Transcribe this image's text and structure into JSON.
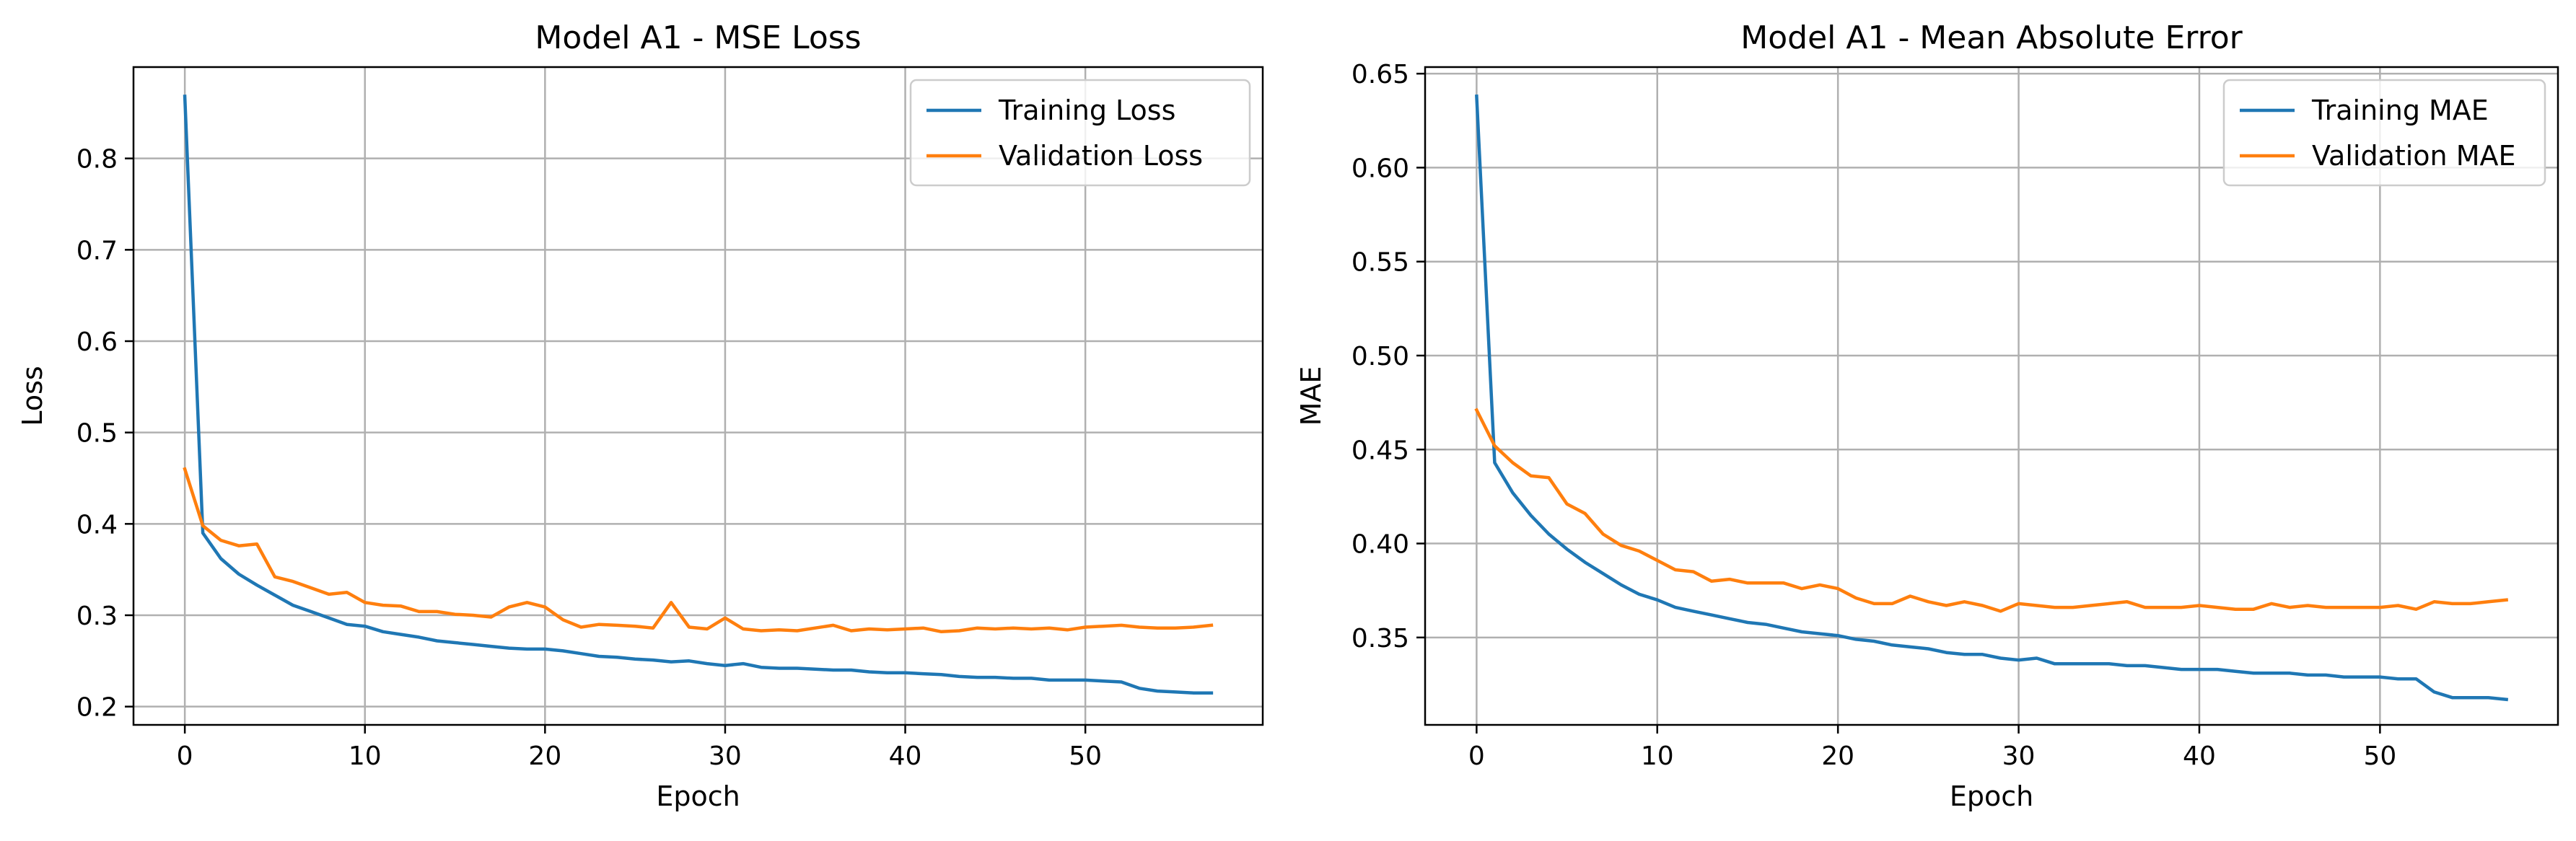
{
  "chart_data": [
    {
      "type": "line",
      "title": "Model A1 - MSE Loss",
      "xlabel": "Epoch",
      "ylabel": "Loss",
      "xlim": [
        -2.85,
        59.85
      ],
      "ylim": [
        0.18,
        0.9
      ],
      "xticks": [
        0,
        10,
        20,
        30,
        40,
        50
      ],
      "yticks": [
        0.2,
        0.3,
        0.4,
        0.5,
        0.6,
        0.7,
        0.8
      ],
      "tick_decimals": 1,
      "grid": true,
      "legend_position": "upper right",
      "series": [
        {
          "name": "Training Loss",
          "color": "#1f77b4",
          "x": [
            0,
            1,
            2,
            3,
            4,
            5,
            6,
            7,
            8,
            9,
            10,
            11,
            12,
            13,
            14,
            15,
            16,
            17,
            18,
            19,
            20,
            21,
            22,
            23,
            24,
            25,
            26,
            27,
            28,
            29,
            30,
            31,
            32,
            33,
            34,
            35,
            36,
            37,
            38,
            39,
            40,
            41,
            42,
            43,
            44,
            45,
            46,
            47,
            48,
            49,
            50,
            51,
            52,
            53,
            54,
            55,
            56,
            57
          ],
          "values": [
            0.868,
            0.39,
            0.362,
            0.345,
            0.333,
            0.322,
            0.311,
            0.304,
            0.297,
            0.29,
            0.288,
            0.282,
            0.279,
            0.276,
            0.272,
            0.27,
            0.268,
            0.266,
            0.264,
            0.263,
            0.263,
            0.261,
            0.258,
            0.255,
            0.254,
            0.252,
            0.251,
            0.249,
            0.25,
            0.247,
            0.245,
            0.247,
            0.243,
            0.242,
            0.242,
            0.241,
            0.24,
            0.24,
            0.238,
            0.237,
            0.237,
            0.236,
            0.235,
            0.233,
            0.232,
            0.232,
            0.231,
            0.231,
            0.229,
            0.229,
            0.229,
            0.228,
            0.227,
            0.22,
            0.217,
            0.216,
            0.215,
            0.215
          ]
        },
        {
          "name": "Validation Loss",
          "color": "#ff7f0e",
          "x": [
            0,
            1,
            2,
            3,
            4,
            5,
            6,
            7,
            8,
            9,
            10,
            11,
            12,
            13,
            14,
            15,
            16,
            17,
            18,
            19,
            20,
            21,
            22,
            23,
            24,
            25,
            26,
            27,
            28,
            29,
            30,
            31,
            32,
            33,
            34,
            35,
            36,
            37,
            38,
            39,
            40,
            41,
            42,
            43,
            44,
            45,
            46,
            47,
            48,
            49,
            50,
            51,
            52,
            53,
            54,
            55,
            56,
            57
          ],
          "values": [
            0.46,
            0.398,
            0.382,
            0.376,
            0.378,
            0.342,
            0.337,
            0.33,
            0.323,
            0.325,
            0.314,
            0.311,
            0.31,
            0.304,
            0.304,
            0.301,
            0.3,
            0.298,
            0.309,
            0.314,
            0.309,
            0.295,
            0.287,
            0.29,
            0.289,
            0.288,
            0.286,
            0.314,
            0.287,
            0.285,
            0.297,
            0.285,
            0.283,
            0.284,
            0.283,
            0.286,
            0.289,
            0.283,
            0.285,
            0.284,
            0.285,
            0.286,
            0.282,
            0.283,
            0.286,
            0.285,
            0.286,
            0.285,
            0.286,
            0.284,
            0.287,
            0.288,
            0.289,
            0.287,
            0.286,
            0.286,
            0.287,
            0.289
          ]
        }
      ]
    },
    {
      "type": "line",
      "title": "Model A1 - Mean Absolute Error",
      "xlabel": "Epoch",
      "ylabel": "MAE",
      "xlim": [
        -2.85,
        59.85
      ],
      "ylim": [
        0.3035,
        0.6535
      ],
      "xticks": [
        0,
        10,
        20,
        30,
        40,
        50
      ],
      "yticks": [
        0.35,
        0.4,
        0.45,
        0.5,
        0.55,
        0.6,
        0.65
      ],
      "tick_decimals": 2,
      "grid": true,
      "legend_position": "upper right",
      "series": [
        {
          "name": "Training MAE",
          "color": "#1f77b4",
          "x": [
            0,
            1,
            2,
            3,
            4,
            5,
            6,
            7,
            8,
            9,
            10,
            11,
            12,
            13,
            14,
            15,
            16,
            17,
            18,
            19,
            20,
            21,
            22,
            23,
            24,
            25,
            26,
            27,
            28,
            29,
            30,
            31,
            32,
            33,
            34,
            35,
            36,
            37,
            38,
            39,
            40,
            41,
            42,
            43,
            44,
            45,
            46,
            47,
            48,
            49,
            50,
            51,
            52,
            53,
            54,
            55,
            56,
            57
          ],
          "values": [
            0.638,
            0.443,
            0.427,
            0.415,
            0.405,
            0.397,
            0.39,
            0.384,
            0.378,
            0.373,
            0.37,
            0.366,
            0.364,
            0.362,
            0.36,
            0.358,
            0.357,
            0.355,
            0.353,
            0.352,
            0.351,
            0.349,
            0.348,
            0.346,
            0.345,
            0.344,
            0.342,
            0.341,
            0.341,
            0.339,
            0.338,
            0.339,
            0.336,
            0.336,
            0.336,
            0.336,
            0.335,
            0.335,
            0.334,
            0.333,
            0.333,
            0.333,
            0.332,
            0.331,
            0.331,
            0.331,
            0.33,
            0.33,
            0.329,
            0.329,
            0.329,
            0.328,
            0.328,
            0.321,
            0.318,
            0.318,
            0.318,
            0.317
          ]
        },
        {
          "name": "Validation MAE",
          "color": "#ff7f0e",
          "x": [
            0,
            1,
            2,
            3,
            4,
            5,
            6,
            7,
            8,
            9,
            10,
            11,
            12,
            13,
            14,
            15,
            16,
            17,
            18,
            19,
            20,
            21,
            22,
            23,
            24,
            25,
            26,
            27,
            28,
            29,
            30,
            31,
            32,
            33,
            34,
            35,
            36,
            37,
            38,
            39,
            40,
            41,
            42,
            43,
            44,
            45,
            46,
            47,
            48,
            49,
            50,
            51,
            52,
            53,
            54,
            55,
            56,
            57
          ],
          "values": [
            0.471,
            0.452,
            0.443,
            0.436,
            0.435,
            0.421,
            0.416,
            0.405,
            0.399,
            0.396,
            0.391,
            0.386,
            0.385,
            0.38,
            0.381,
            0.379,
            0.379,
            0.379,
            0.376,
            0.378,
            0.376,
            0.371,
            0.368,
            0.368,
            0.372,
            0.369,
            0.367,
            0.369,
            0.367,
            0.364,
            0.368,
            0.367,
            0.366,
            0.366,
            0.367,
            0.368,
            0.369,
            0.366,
            0.366,
            0.366,
            0.367,
            0.366,
            0.365,
            0.365,
            0.368,
            0.366,
            0.367,
            0.366,
            0.366,
            0.366,
            0.366,
            0.367,
            0.365,
            0.369,
            0.368,
            0.368,
            0.369,
            0.37
          ]
        }
      ]
    }
  ]
}
